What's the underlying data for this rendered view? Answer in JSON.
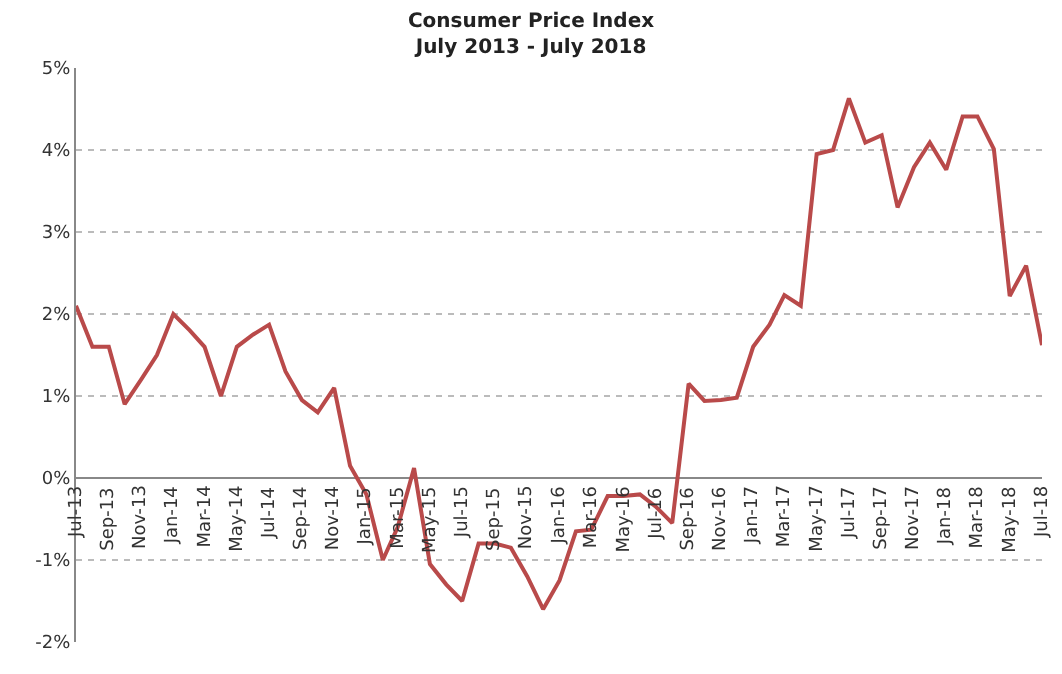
{
  "chart_data": {
    "type": "line",
    "title": "Consumer Price Index",
    "subtitle": "July 2013 - July 2018",
    "x": [
      "2013-07",
      "2013-08",
      "2013-09",
      "2013-10",
      "2013-11",
      "2013-12",
      "2014-01",
      "2014-02",
      "2014-03",
      "2014-04",
      "2014-05",
      "2014-06",
      "2014-07",
      "2014-08",
      "2014-09",
      "2014-10",
      "2014-11",
      "2014-12",
      "2015-01",
      "2015-02",
      "2015-03",
      "2015-04",
      "2015-05",
      "2015-06",
      "2015-07",
      "2015-08",
      "2015-09",
      "2015-10",
      "2015-11",
      "2015-12",
      "2016-01",
      "2016-02",
      "2016-03",
      "2016-04",
      "2016-05",
      "2016-06",
      "2016-07",
      "2016-08",
      "2016-09",
      "2016-10",
      "2016-11",
      "2016-12",
      "2017-01",
      "2017-02",
      "2017-03",
      "2017-04",
      "2017-05",
      "2017-06",
      "2017-07",
      "2017-08",
      "2017-09",
      "2017-10",
      "2017-11",
      "2017-12",
      "2018-01",
      "2018-02",
      "2018-03",
      "2018-04",
      "2018-05",
      "2018-06",
      "2018-07"
    ],
    "series": [
      {
        "color": "#b94a4a",
        "values": [
          2.1,
          1.6,
          1.6,
          0.9,
          1.2,
          1.5,
          2.0,
          1.8,
          1.6,
          1.0,
          1.6,
          1.75,
          1.87,
          1.3,
          0.95,
          0.8,
          1.1,
          0.15,
          -0.2,
          -1.0,
          -0.6,
          0.12,
          -1.05,
          -1.3,
          -1.5,
          -0.8,
          -0.8,
          -0.85,
          -1.2,
          -1.6,
          -1.25,
          -0.65,
          -0.63,
          -0.22,
          -0.22,
          -0.2,
          -0.35,
          -0.55,
          1.15,
          0.94,
          0.95,
          0.98,
          1.6,
          1.87,
          2.23,
          2.1,
          3.95,
          4.0,
          4.63,
          4.09,
          4.18,
          3.3,
          3.79,
          4.09,
          3.76,
          4.41,
          4.41,
          4.01,
          2.22,
          2.59,
          1.62
        ]
      }
    ],
    "xlim": [
      "2013-07",
      "2018-07"
    ],
    "xticks": [
      {
        "value": "2013-07",
        "label": "Jul-13"
      },
      {
        "value": "2013-09",
        "label": "Sep-13"
      },
      {
        "value": "2013-11",
        "label": "Nov-13"
      },
      {
        "value": "2014-01",
        "label": "Jan-14"
      },
      {
        "value": "2014-03",
        "label": "Mar-14"
      },
      {
        "value": "2014-05",
        "label": "May-14"
      },
      {
        "value": "2014-07",
        "label": "Jul-14"
      },
      {
        "value": "2014-09",
        "label": "Sep-14"
      },
      {
        "value": "2014-11",
        "label": "Nov-14"
      },
      {
        "value": "2015-01",
        "label": "Jan-15"
      },
      {
        "value": "2015-03",
        "label": "Mar-15"
      },
      {
        "value": "2015-05",
        "label": "May-15"
      },
      {
        "value": "2015-07",
        "label": "Jul-15"
      },
      {
        "value": "2015-09",
        "label": "Sep-15"
      },
      {
        "value": "2015-11",
        "label": "Nov-15"
      },
      {
        "value": "2016-01",
        "label": "Jan-16"
      },
      {
        "value": "2016-03",
        "label": "Mar-16"
      },
      {
        "value": "2016-05",
        "label": "May-16"
      },
      {
        "value": "2016-07",
        "label": "Jul-16"
      },
      {
        "value": "2016-09",
        "label": "Sep-16"
      },
      {
        "value": "2016-11",
        "label": "Nov-16"
      },
      {
        "value": "2017-01",
        "label": "Jan-17"
      },
      {
        "value": "2017-03",
        "label": "Mar-17"
      },
      {
        "value": "2017-05",
        "label": "May-17"
      },
      {
        "value": "2017-07",
        "label": "Jul-17"
      },
      {
        "value": "2017-09",
        "label": "Sep-17"
      },
      {
        "value": "2017-11",
        "label": "Nov-17"
      },
      {
        "value": "2018-01",
        "label": "Jan-18"
      },
      {
        "value": "2018-03",
        "label": "Mar-18"
      },
      {
        "value": "2018-05",
        "label": "May-18"
      },
      {
        "value": "2018-07",
        "label": "Jul-18"
      }
    ],
    "ylim": [
      -2,
      5
    ],
    "yticks": [
      {
        "value": -2,
        "label": "-2%"
      },
      {
        "value": -1,
        "label": "-1%"
      },
      {
        "value": 0,
        "label": "0%"
      },
      {
        "value": 1,
        "label": "1%"
      },
      {
        "value": 2,
        "label": "2%"
      },
      {
        "value": 3,
        "label": "3%"
      },
      {
        "value": 4,
        "label": "4%"
      },
      {
        "value": 5,
        "label": "5%"
      }
    ],
    "grid": "y",
    "marker": "none",
    "line_style": "solid"
  }
}
